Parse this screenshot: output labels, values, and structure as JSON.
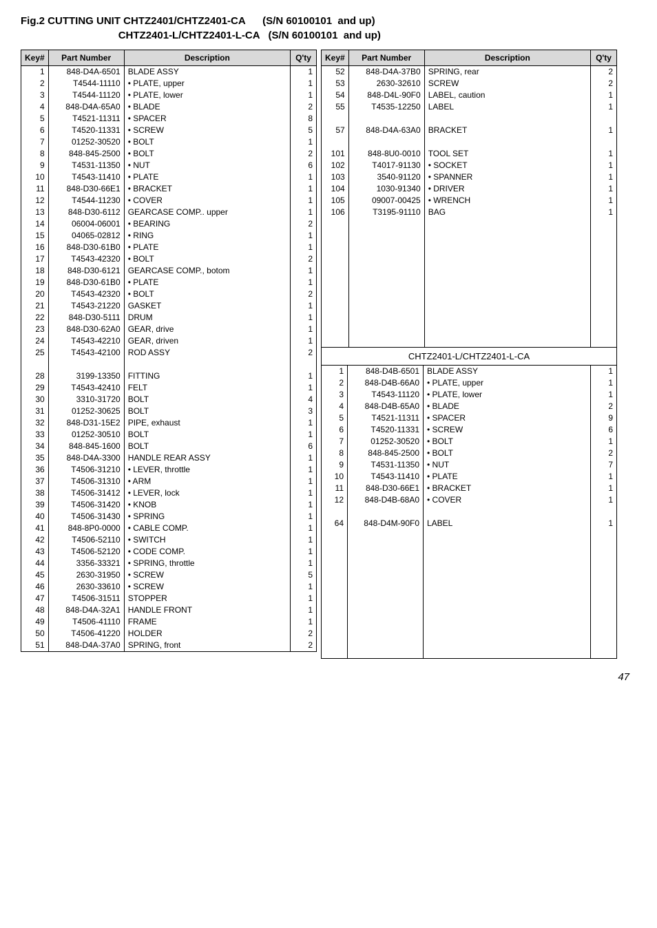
{
  "title": {
    "line1_left": "Fig.2 CUTTING UNIT CHTZ2401/CHTZ2401-CA",
    "line1_right": "(S/N 60100101  and up)",
    "line2_left": "CHTZ2401-L/CHTZ2401-L-CA",
    "line2_right": "(S/N 60100101  and up)"
  },
  "headers": {
    "key": "Key#",
    "part": "Part Number",
    "desc": "Description",
    "qty": "Q'ty"
  },
  "left_rows": [
    {
      "k": "1",
      "p": "848-D4A-6501",
      "d": "BLADE ASSY",
      "q": "1"
    },
    {
      "k": "2",
      "p": "T4544-11110",
      "d": "• PLATE, upper",
      "q": "1"
    },
    {
      "k": "3",
      "p": "T4544-11120",
      "d": "• PLATE, lower",
      "q": "1"
    },
    {
      "k": "4",
      "p": "848-D4A-65A0",
      "d": "• BLADE",
      "q": "2"
    },
    {
      "k": "5",
      "p": "T4521-11311",
      "d": "• SPACER",
      "q": "8"
    },
    {
      "k": "6",
      "p": "T4520-11331",
      "d": "• SCREW",
      "q": "5"
    },
    {
      "k": "7",
      "p": "01252-30520",
      "d": "• BOLT",
      "q": "1"
    },
    {
      "k": "8",
      "p": "848-845-2500",
      "d": "• BOLT",
      "q": "2"
    },
    {
      "k": "9",
      "p": "T4531-11350",
      "d": "• NUT",
      "q": "6"
    },
    {
      "k": "10",
      "p": "T4543-11410",
      "d": "• PLATE",
      "q": "1"
    },
    {
      "k": "11",
      "p": "848-D30-66E1",
      "d": "• BRACKET",
      "q": "1"
    },
    {
      "k": "12",
      "p": "T4544-11230",
      "d": "• COVER",
      "q": "1"
    },
    {
      "k": "13",
      "p": "848-D30-6112",
      "d": "GEARCASE COMP.. upper",
      "q": "1"
    },
    {
      "k": "14",
      "p": "06004-06001",
      "d": "• BEARING",
      "q": "2"
    },
    {
      "k": "15",
      "p": "04065-02812",
      "d": "• RING",
      "q": "1"
    },
    {
      "k": "16",
      "p": "848-D30-61B0",
      "d": "• PLATE",
      "q": "1"
    },
    {
      "k": "17",
      "p": "T4543-42320",
      "d": "• BOLT",
      "q": "2"
    },
    {
      "k": "18",
      "p": "848-D30-6121",
      "d": "GEARCASE COMP., botom",
      "q": "1"
    },
    {
      "k": "19",
      "p": "848-D30-61B0",
      "d": "• PLATE",
      "q": "1"
    },
    {
      "k": "20",
      "p": "T4543-42320",
      "d": "• BOLT",
      "q": "2"
    },
    {
      "k": "21",
      "p": "T4543-21220",
      "d": "GASKET",
      "q": "1"
    },
    {
      "k": "22",
      "p": "848-D30-5111",
      "d": "DRUM",
      "q": "1"
    },
    {
      "k": "23",
      "p": "848-D30-62A0",
      "d": "GEAR, drive",
      "q": "1"
    },
    {
      "k": "24",
      "p": "T4543-42210",
      "d": "GEAR, driven",
      "q": "1"
    },
    {
      "k": "25",
      "p": "T4543-42100",
      "d": "ROD ASSY",
      "q": "2"
    },
    {
      "k": "",
      "p": "",
      "d": "",
      "q": ""
    },
    {
      "k": "28",
      "p": "3199-13350",
      "d": "FITTING",
      "q": "1"
    },
    {
      "k": "29",
      "p": "T4543-42410",
      "d": "FELT",
      "q": "1"
    },
    {
      "k": "30",
      "p": "3310-31720",
      "d": "BOLT",
      "q": "4"
    },
    {
      "k": "31",
      "p": "01252-30625",
      "d": "BOLT",
      "q": "3"
    },
    {
      "k": "32",
      "p": "848-D31-15E2",
      "d": "PIPE, exhaust",
      "q": "1"
    },
    {
      "k": "33",
      "p": "01252-30510",
      "d": "BOLT",
      "q": "1"
    },
    {
      "k": "34",
      "p": "848-845-1600",
      "d": "BOLT",
      "q": "6"
    },
    {
      "k": "35",
      "p": "848-D4A-3300",
      "d": "HANDLE REAR ASSY",
      "q": "1"
    },
    {
      "k": "36",
      "p": "T4506-31210",
      "d": "• LEVER, throttle",
      "q": "1"
    },
    {
      "k": "37",
      "p": "T4506-31310",
      "d": "• ARM",
      "q": "1"
    },
    {
      "k": "38",
      "p": "T4506-31412",
      "d": "• LEVER, lock",
      "q": "1"
    },
    {
      "k": "39",
      "p": "T4506-31420",
      "d": "• KNOB",
      "q": "1"
    },
    {
      "k": "40",
      "p": "T4506-31430",
      "d": "• SPRING",
      "q": "1"
    },
    {
      "k": "41",
      "p": "848-8P0-0000",
      "d": "• CABLE COMP.",
      "q": "1"
    },
    {
      "k": "42",
      "p": "T4506-52110",
      "d": "• SWITCH",
      "q": "1"
    },
    {
      "k": "43",
      "p": "T4506-52120",
      "d": "• CODE COMP.",
      "q": "1"
    },
    {
      "k": "44",
      "p": "3356-33321",
      "d": "• SPRING, throttle",
      "q": "1"
    },
    {
      "k": "45",
      "p": "2630-31950",
      "d": "• SCREW",
      "q": "5"
    },
    {
      "k": "46",
      "p": "2630-33610",
      "d": "• SCREW",
      "q": "1"
    },
    {
      "k": "47",
      "p": "T4506-31511",
      "d": "STOPPER",
      "q": "1"
    },
    {
      "k": "48",
      "p": "848-D4A-32A1",
      "d": "HANDLE FRONT",
      "q": "1"
    },
    {
      "k": "49",
      "p": "T4506-41110",
      "d": "FRAME",
      "q": "1"
    },
    {
      "k": "50",
      "p": "T4506-41220",
      "d": "HOLDER",
      "q": "2"
    },
    {
      "k": "51",
      "p": "848-D4A-37A0",
      "d": "SPRING, front",
      "q": "2"
    }
  ],
  "right_top_rows": [
    {
      "k": "52",
      "p": "848-D4A-37B0",
      "d": "SPRING, rear",
      "q": "2"
    },
    {
      "k": "53",
      "p": "2630-32610",
      "d": "SCREW",
      "q": "2"
    },
    {
      "k": "54",
      "p": "848-D4L-90F0",
      "d": "LABEL, caution",
      "q": "1"
    },
    {
      "k": "55",
      "p": "T4535-12250",
      "d": "LABEL",
      "q": "1"
    },
    {
      "k": "",
      "p": "",
      "d": "",
      "q": ""
    },
    {
      "k": "57",
      "p": "848-D4A-63A0",
      "d": "BRACKET",
      "q": "1"
    },
    {
      "k": "",
      "p": "",
      "d": "",
      "q": ""
    },
    {
      "k": "101",
      "p": "848-8U0-0010",
      "d": "TOOL SET",
      "q": "1"
    },
    {
      "k": "102",
      "p": "T4017-91130",
      "d": "• SOCKET",
      "q": "1"
    },
    {
      "k": "103",
      "p": "3540-91120",
      "d": "• SPANNER",
      "q": "1"
    },
    {
      "k": "104",
      "p": "1030-91340",
      "d": "• DRIVER",
      "q": "1"
    },
    {
      "k": "105",
      "p": "09007-00425",
      "d": "• WRENCH",
      "q": "1"
    },
    {
      "k": "106",
      "p": "T3195-91110",
      "d": "BAG",
      "q": "1"
    }
  ],
  "right_top_pad": 11,
  "sub_heading": "CHTZ2401-L/CHTZ2401-L-CA",
  "right_bottom_rows": [
    {
      "k": "1",
      "p": "848-D4B-6501",
      "d": "BLADE ASSY",
      "q": "1"
    },
    {
      "k": "2",
      "p": "848-D4B-66A0",
      "d": "• PLATE, upper",
      "q": "1"
    },
    {
      "k": "3",
      "p": "T4543-11120",
      "d": "• PLATE, lower",
      "q": "1"
    },
    {
      "k": "4",
      "p": "848-D4B-65A0",
      "d": "• BLADE",
      "q": "2"
    },
    {
      "k": "5",
      "p": "T4521-11311",
      "d": "• SPACER",
      "q": "9"
    },
    {
      "k": "6",
      "p": "T4520-11331",
      "d": "• SCREW",
      "q": "6"
    },
    {
      "k": "7",
      "p": "01252-30520",
      "d": "• BOLT",
      "q": "1"
    },
    {
      "k": "8",
      "p": "848-845-2500",
      "d": "• BOLT",
      "q": "2"
    },
    {
      "k": "9",
      "p": "T4531-11350",
      "d": "• NUT",
      "q": "7"
    },
    {
      "k": "10",
      "p": "T4543-11410",
      "d": "• PLATE",
      "q": "1"
    },
    {
      "k": "11",
      "p": "848-D30-66E1",
      "d": "• BRACKET",
      "q": "1"
    },
    {
      "k": "12",
      "p": "848-D4B-68A0",
      "d": "• COVER",
      "q": "1"
    },
    {
      "k": "",
      "p": "",
      "d": "",
      "q": ""
    },
    {
      "k": "64",
      "p": "848-D4M-90F0",
      "d": "LABEL",
      "q": "1"
    }
  ],
  "right_bottom_pad": 11,
  "page_number": "47"
}
